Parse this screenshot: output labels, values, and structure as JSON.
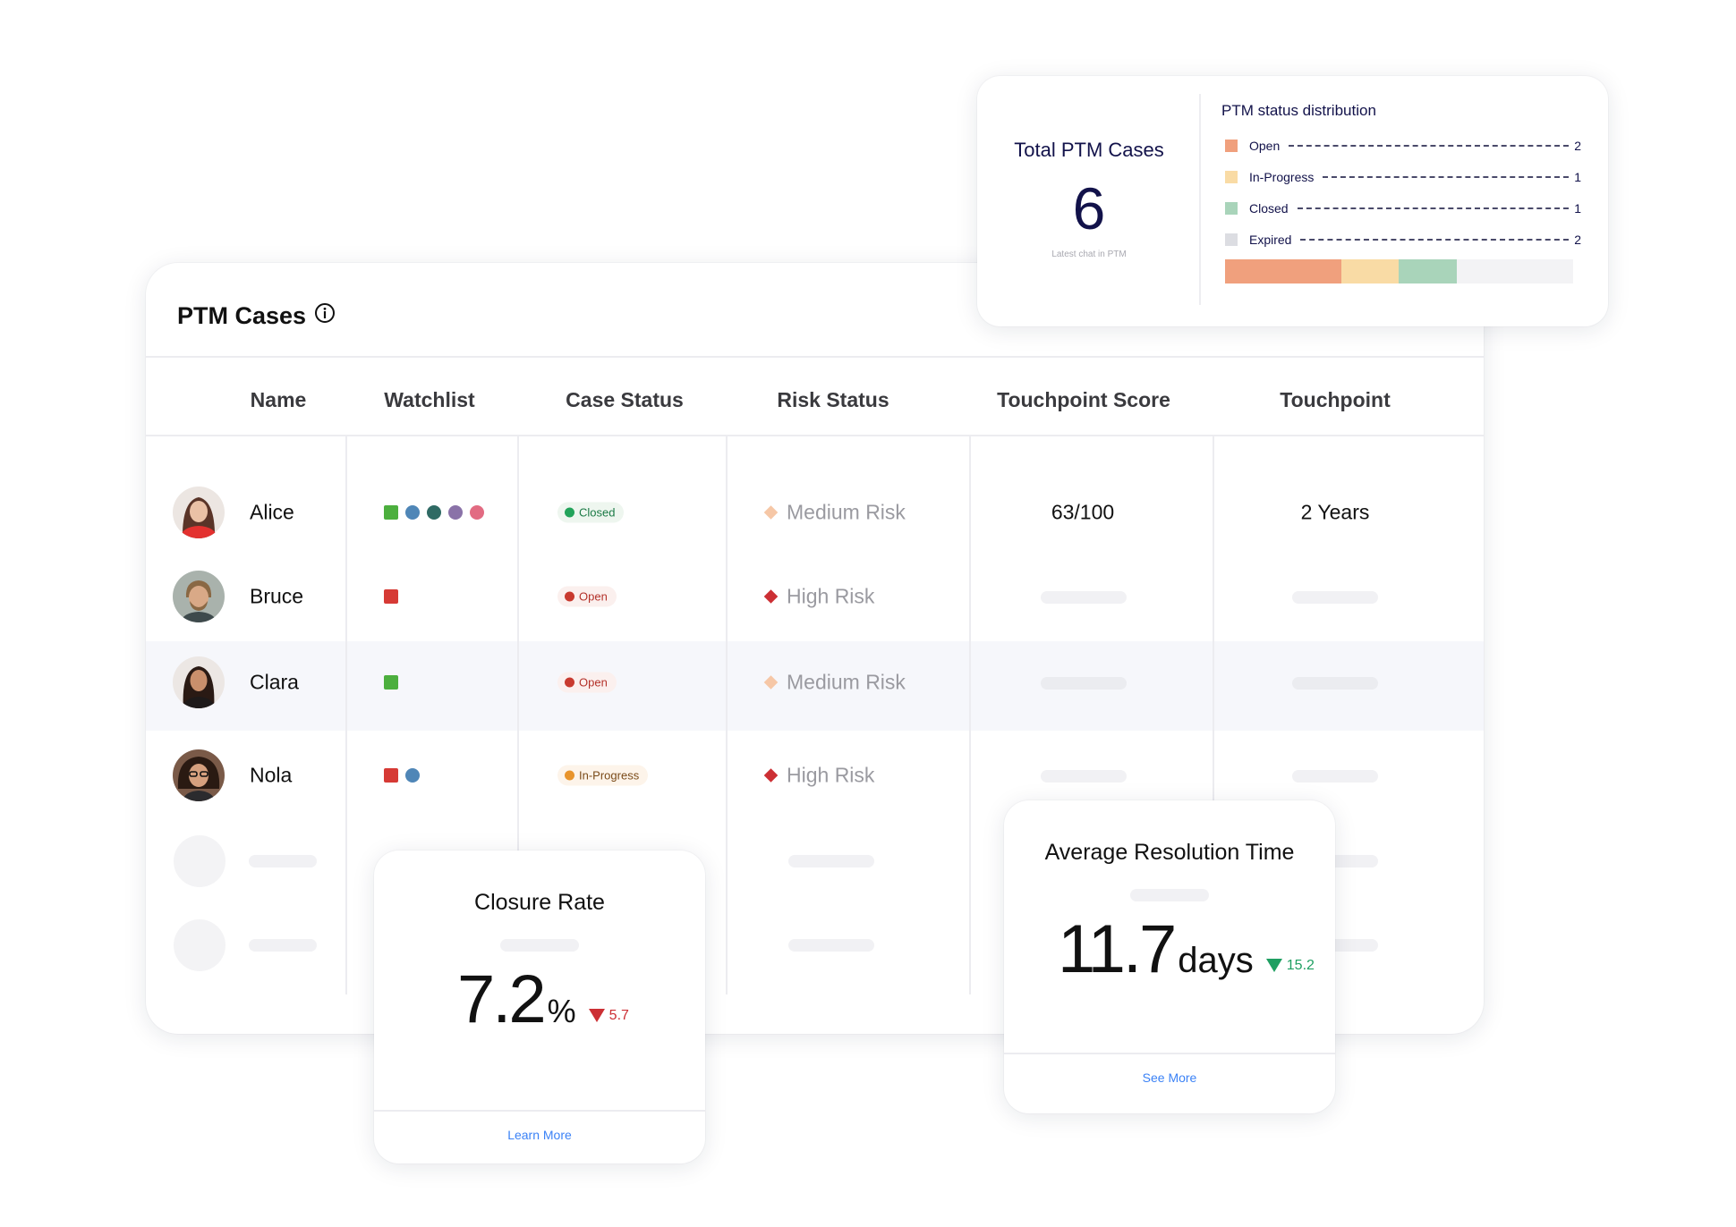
{
  "main": {
    "title": "PTM Cases",
    "columns": [
      "Name",
      "Watchlist",
      "Case Status",
      "Risk Status",
      "Touchpoint Score",
      "Touchpoint"
    ],
    "rows": [
      {
        "name": "Alice",
        "watchlist": [
          {
            "shape": "square",
            "color": "#4caf3e"
          },
          {
            "shape": "circle",
            "color": "#4f86b7"
          },
          {
            "shape": "circle",
            "color": "#2f6a64"
          },
          {
            "shape": "circle",
            "color": "#8a72a8"
          },
          {
            "shape": "circle",
            "color": "#e26b82"
          }
        ],
        "case_status": "Closed",
        "case_status_color": "#22a35a",
        "case_status_bg": "#eef6ef",
        "risk_status": "Medium Risk",
        "risk_color": "#f6c7a6",
        "touchpoint_score": "63/100",
        "touchpoint": "2 Years"
      },
      {
        "name": "Bruce",
        "watchlist": [
          {
            "shape": "square",
            "color": "#d63a35"
          }
        ],
        "case_status": "Open",
        "case_status_color": "#c83a2f",
        "case_status_bg": "#fbf0ee",
        "risk_status": "High Risk",
        "risk_color": "#cc2f34",
        "touchpoint_score": "",
        "touchpoint": ""
      },
      {
        "name": "Clara",
        "watchlist": [
          {
            "shape": "square",
            "color": "#4caf3e"
          }
        ],
        "case_status": "Open",
        "case_status_color": "#c83a2f",
        "case_status_bg": "#fbf0ee",
        "risk_status": "Medium Risk",
        "risk_color": "#f6c7a6",
        "touchpoint_score": "",
        "touchpoint": ""
      },
      {
        "name": "Nola",
        "watchlist": [
          {
            "shape": "square",
            "color": "#d63a35"
          },
          {
            "shape": "circle",
            "color": "#4f86b7"
          }
        ],
        "case_status": "In-Progress",
        "case_status_color": "#e8942c",
        "case_status_bg": "#fdf4ea",
        "risk_status": "High Risk",
        "risk_color": "#cc2f34",
        "touchpoint_score": "",
        "touchpoint": ""
      }
    ]
  },
  "summary": {
    "total_title": "Total PTM Cases",
    "total_value": "6",
    "total_subtitle": "Latest chat in PTM",
    "distribution_title": "PTM status distribution",
    "distribution": [
      {
        "label": "Open",
        "count": 2,
        "color": "#f0a07d"
      },
      {
        "label": "In-Progress",
        "count": 1,
        "color": "#f9dba5"
      },
      {
        "label": "Closed",
        "count": 1,
        "color": "#a9d4ba"
      },
      {
        "label": "Expired",
        "count": 2,
        "color": "#dcdde2"
      }
    ]
  },
  "closure_rate": {
    "title": "Closure Rate",
    "value": "7.2",
    "unit": "%",
    "delta": "5.7",
    "delta_color": "#cc2f34",
    "link": "Learn More"
  },
  "resolution_time": {
    "title": "Average Resolution Time",
    "value": "11.7",
    "unit": "days",
    "delta": "15.2",
    "delta_color": "#1f9f62",
    "link": "See More"
  }
}
